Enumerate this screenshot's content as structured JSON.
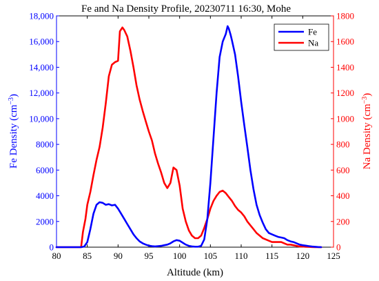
{
  "chart_data": {
    "type": "line",
    "title": "Fe and Na Density Profile, 20230711 16:30, Mohe",
    "xlabel": "Altitude (km)",
    "ylabel_left": {
      "text": "Fe Density (cm",
      "sup": "−3",
      "tail": ")"
    },
    "ylabel_right": {
      "text": "Na Density (cm",
      "sup": "−3",
      "tail": ")"
    },
    "xlim": [
      80,
      125
    ],
    "ylim_left": [
      0,
      18000
    ],
    "ylim_right": [
      0,
      1800
    ],
    "x_ticks": [
      "80",
      "85",
      "90",
      "95",
      "100",
      "105",
      "110",
      "115",
      "120",
      "125"
    ],
    "y_left_ticks": [
      "0",
      "2000",
      "4000",
      "6000",
      "8000",
      "10,000",
      "12,000",
      "14,000",
      "16,000",
      "18,000"
    ],
    "y_right_ticks": [
      "0",
      "200",
      "400",
      "600",
      "800",
      "1000",
      "1200",
      "1400",
      "1600",
      "1800"
    ],
    "legend_position": "top-right",
    "grid": false,
    "colors": {
      "fe": "#0000ff",
      "na": "#ff0000"
    },
    "series": [
      {
        "name": "Fe",
        "axis": "left",
        "color": "#0000ff",
        "x": [
          80,
          84,
          84.5,
          85,
          85.5,
          86,
          86.5,
          87,
          87.5,
          88,
          88.5,
          89,
          89.5,
          90,
          90.5,
          91,
          91.5,
          92,
          92.5,
          93,
          93.5,
          94,
          94.5,
          95,
          95.5,
          96,
          96.5,
          97,
          97.5,
          98,
          98.5,
          99,
          99.5,
          100,
          100.5,
          101,
          101.5,
          102,
          102.5,
          103,
          103.5,
          104,
          104.5,
          105,
          105.5,
          106,
          106.5,
          107,
          107.5,
          107.8,
          108,
          108.3,
          108.5,
          109,
          109.5,
          110,
          110.5,
          111,
          111.5,
          112,
          112.5,
          113,
          113.5,
          114,
          114.5,
          115,
          115.5,
          116,
          116.5,
          117,
          117.5,
          118,
          118.5,
          119,
          119.5,
          120,
          120.5,
          121,
          121.5,
          122,
          122.5,
          123
        ],
        "y": [
          0,
          0,
          50,
          400,
          1400,
          2600,
          3300,
          3500,
          3450,
          3300,
          3350,
          3250,
          3300,
          3000,
          2600,
          2200,
          1800,
          1400,
          1000,
          700,
          450,
          300,
          200,
          120,
          80,
          60,
          80,
          100,
          150,
          200,
          300,
          450,
          550,
          500,
          350,
          200,
          100,
          60,
          40,
          40,
          100,
          600,
          2200,
          5000,
          8500,
          12000,
          14800,
          16000,
          16600,
          17200,
          17000,
          16500,
          16100,
          15000,
          13300,
          11300,
          9500,
          7800,
          6000,
          4500,
          3300,
          2500,
          1900,
          1400,
          1100,
          1000,
          900,
          800,
          750,
          700,
          550,
          450,
          400,
          300,
          200,
          150,
          120,
          80,
          50,
          30,
          10,
          0
        ]
      },
      {
        "name": "Na",
        "axis": "right",
        "color": "#ff0000",
        "x": [
          80,
          84,
          84.3,
          84.7,
          85,
          85.5,
          86,
          86.5,
          87,
          87.5,
          88,
          88.5,
          89,
          89.5,
          90,
          90.3,
          90.7,
          91,
          91.5,
          92,
          92.5,
          93,
          93.5,
          94,
          94.5,
          95,
          95.5,
          96,
          96.5,
          97,
          97.5,
          98,
          98.5,
          99,
          99.5,
          100,
          100.5,
          101,
          101.5,
          102,
          102.5,
          103,
          103.5,
          104,
          104.5,
          105,
          105.5,
          106,
          106.5,
          107,
          107.5,
          108,
          108.5,
          109,
          109.5,
          110,
          110.5,
          111,
          111.5,
          112,
          112.5,
          113,
          113.5,
          114,
          114.5,
          115,
          115.5,
          116,
          116.5,
          117,
          117.5,
          118,
          118.5,
          119,
          119.5,
          120,
          120.5,
          121,
          121.5,
          122,
          122.5,
          123
        ],
        "y": [
          0,
          0,
          120,
          220,
          330,
          430,
          560,
          680,
          780,
          930,
          1120,
          1330,
          1420,
          1440,
          1450,
          1680,
          1710,
          1690,
          1640,
          1530,
          1400,
          1260,
          1150,
          1060,
          980,
          900,
          830,
          730,
          650,
          580,
          500,
          460,
          500,
          620,
          600,
          480,
          300,
          200,
          130,
          90,
          70,
          70,
          90,
          150,
          220,
          300,
          360,
          400,
          430,
          440,
          420,
          390,
          360,
          320,
          290,
          270,
          240,
          200,
          170,
          140,
          110,
          90,
          70,
          60,
          50,
          40,
          40,
          40,
          40,
          30,
          20,
          20,
          15,
          10,
          5,
          5,
          3,
          2,
          1,
          0,
          0,
          0
        ]
      }
    ]
  }
}
